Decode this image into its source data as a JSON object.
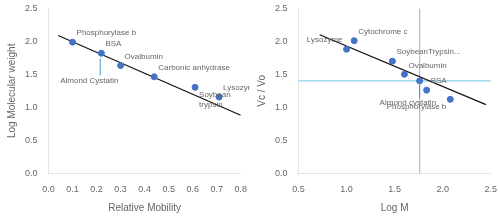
{
  "chart_data": [
    {
      "type": "scatter",
      "x_label": "Relative Mobility",
      "y_label": "Log Molecular weight",
      "xlim": [
        0.0,
        0.8
      ],
      "ylim": [
        0.0,
        2.5
      ],
      "xticks": [
        {
          "value": 0.0,
          "label": "0.0"
        },
        0.1,
        0.2,
        0.3,
        0.4,
        0.5,
        0.6,
        0.7,
        0.8
      ],
      "yticks": [
        {
          "value": 0.0,
          "label": "0.0"
        },
        0.5,
        {
          "value": 1.0,
          "label": "1.0"
        },
        1.5,
        {
          "value": 2.0,
          "label": "2.0"
        },
        2.5
      ],
      "grid": false,
      "series": [
        {
          "type": "line",
          "color": "#111111",
          "x": [
            0.04,
            0.8
          ],
          "values": [
            2.09,
            0.88
          ]
        },
        {
          "type": "scatter",
          "color": "#4472C4",
          "x": [
            0.1,
            0.22,
            0.3,
            0.44,
            0.61,
            0.71
          ],
          "values": [
            1.988,
            1.82,
            1.633,
            1.462,
            1.303,
            1.155
          ],
          "labels": [
            "Phosphorylase b",
            "BSA",
            "Ovalbumin",
            "Carbonic anhydrase",
            "Soybean\ntrypsin",
            "Lysozyme"
          ]
        }
      ],
      "annotations": [
        {
          "text": "Almond Cystatin",
          "x": 0.215,
          "y": 1.74,
          "color": "#4499CC"
        }
      ]
    },
    {
      "type": "scatter",
      "x_label": "Log M",
      "y_label": "Vc / Vo",
      "xlim": [
        0.5,
        2.5
      ],
      "ylim": [
        0.0,
        2.5
      ],
      "xticks": [
        0.5,
        {
          "value": 1.0,
          "label": "1.0"
        },
        1.5,
        {
          "value": 2.0,
          "label": "2.0"
        },
        2.5
      ],
      "yticks": [
        {
          "value": 0.0,
          "label": "0.0"
        },
        0.5,
        {
          "value": 1.0,
          "label": "1.0"
        },
        1.5,
        {
          "value": 2.0,
          "label": "2.0"
        },
        2.5
      ],
      "grid": false,
      "series": [
        {
          "type": "hline",
          "color": "#87CEEB",
          "values": [
            1.4
          ]
        },
        {
          "type": "vline",
          "color": "#87CEEB",
          "x": [
            1.76
          ]
        },
        {
          "type": "line",
          "color": "#111111",
          "x": [
            0.72,
            2.45
          ],
          "values": [
            2.1,
            1.04
          ]
        },
        {
          "type": "scatter",
          "color": "#4472C4",
          "x": [
            1.079,
            1.0,
            1.477,
            1.602,
            1.833,
            2.079
          ],
          "values": [
            2.01,
            1.88,
            1.7,
            1.5,
            1.26,
            1.12
          ],
          "labels": [
            "Cytochrome c",
            "Lysozyme",
            "SoybeanTrypsin...",
            "Ovalbumin",
            "BSA",
            "Phosphorylase b"
          ]
        },
        {
          "type": "scatter",
          "color": "#4472C4",
          "x": [
            1.76
          ],
          "values": [
            1.4
          ]
        }
      ],
      "annotations": [
        {
          "text": "Almond cystatin",
          "x": 1.76,
          "y": 1.4,
          "color": "#4499CC"
        }
      ]
    }
  ]
}
